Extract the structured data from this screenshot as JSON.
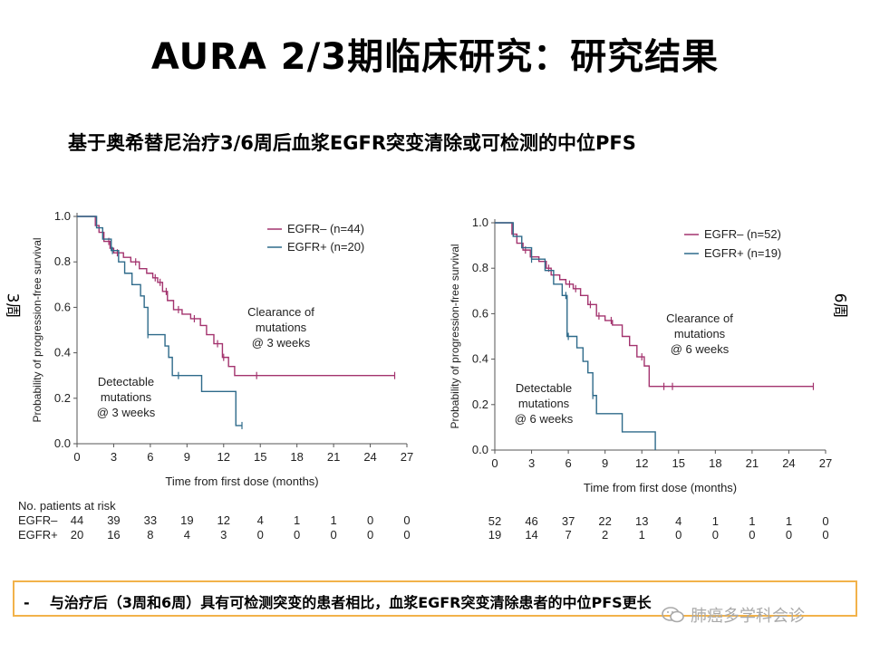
{
  "slide": {
    "title": "AURA 2/3期临床研究：研究结果",
    "subtitle": "基于奥希替尼治疗3/6周后血浆EGFR突变清除或可检测的中位PFS",
    "left_side_label": "3周",
    "right_side_label": "6周",
    "footer_bullet": "-",
    "footer_text": "与治疗后（3周和6周）具有可检测突变的患者相比，血浆EGFR突变清除患者的中位PFS更长",
    "watermark_text": "肺癌多学科会诊",
    "watermark_icon": "wechat-icon"
  },
  "colors": {
    "egfr_minus": "#a3336e",
    "egfr_plus": "#2e6a8a",
    "axis": "#555555",
    "footer_border": "#f2b24a",
    "watermark": "#a9a9a9"
  },
  "chart_data": [
    {
      "type": "line",
      "step": true,
      "xlabel": "Time from first dose (months)",
      "ylabel": "Probability of progression-free survival",
      "xlim": [
        0,
        27
      ],
      "ylim": [
        0,
        1.0
      ],
      "xticks": [
        "0",
        "3",
        "6",
        "9",
        "12",
        "15",
        "18",
        "21",
        "24",
        "27"
      ],
      "yticks": [
        "0.0",
        "0.2",
        "0.4",
        "0.6",
        "0.8",
        "1.0"
      ],
      "legend": "top-right",
      "grid": false,
      "series": [
        {
          "name": "EGFR– (n=44)",
          "x": [
            0,
            1.5,
            1.8,
            2.2,
            2.7,
            3.0,
            3.8,
            4.4,
            5.1,
            5.7,
            6.2,
            6.6,
            7.0,
            7.4,
            7.9,
            8.6,
            9.3,
            10.1,
            10.6,
            11.2,
            11.9,
            12.4,
            12.9,
            26.0
          ],
          "y": [
            1.0,
            0.96,
            0.93,
            0.89,
            0.86,
            0.84,
            0.82,
            0.8,
            0.77,
            0.75,
            0.73,
            0.71,
            0.67,
            0.63,
            0.59,
            0.57,
            0.55,
            0.52,
            0.48,
            0.44,
            0.38,
            0.34,
            0.3,
            0.3
          ],
          "censor_x": [
            2.6,
            3.3,
            4.8,
            6.4,
            6.8,
            7.3,
            8.3,
            9.6,
            11.5,
            12.0,
            14.7,
            26.0
          ]
        },
        {
          "name": "EGFR+ (n=20)",
          "x": [
            0,
            1.6,
            2.1,
            2.8,
            3.4,
            3.9,
            4.5,
            5.2,
            5.5,
            5.8,
            6.6,
            7.2,
            7.5,
            7.8,
            9.7,
            10.2,
            12.5,
            13.0,
            13.5
          ],
          "y": [
            1.0,
            0.95,
            0.9,
            0.85,
            0.8,
            0.75,
            0.7,
            0.65,
            0.6,
            0.48,
            0.48,
            0.43,
            0.38,
            0.3,
            0.3,
            0.23,
            0.23,
            0.08,
            0.08
          ],
          "censor_x": [
            2.9,
            5.8,
            8.3,
            13.5
          ]
        }
      ],
      "annotations": [
        "Clearance of mutations @ 3 weeks",
        "Detectable mutations @ 3 weeks"
      ],
      "risk_table": {
        "header": "No. patients at risk",
        "times": [
          "0",
          "3",
          "6",
          "9",
          "12",
          "15",
          "18",
          "21",
          "24",
          "27"
        ],
        "rows": [
          {
            "label": "EGFR–",
            "values": [
              "44",
              "39",
              "33",
              "19",
              "12",
              "4",
              "1",
              "1",
              "0",
              "0"
            ]
          },
          {
            "label": "EGFR+",
            "values": [
              "20",
              "16",
              "8",
              "4",
              "3",
              "0",
              "0",
              "0",
              "0",
              "0"
            ]
          }
        ]
      }
    },
    {
      "type": "line",
      "step": true,
      "xlabel": "Time from first dose (months)",
      "ylabel": "Probability of progression-free survival",
      "xlim": [
        0,
        27
      ],
      "ylim": [
        0,
        1.0
      ],
      "xticks": [
        "0",
        "3",
        "6",
        "9",
        "12",
        "15",
        "18",
        "21",
        "24",
        "27"
      ],
      "yticks": [
        "0.0",
        "0.2",
        "0.4",
        "0.6",
        "0.8",
        "1.0"
      ],
      "legend": "top-right",
      "grid": false,
      "series": [
        {
          "name": "EGFR– (n=52)",
          "x": [
            0,
            1.4,
            1.8,
            2.3,
            2.9,
            3.6,
            4.2,
            4.6,
            5.3,
            5.8,
            6.4,
            7.0,
            7.6,
            8.3,
            9.0,
            9.6,
            10.4,
            11.0,
            11.6,
            12.2,
            12.6,
            26.0
          ],
          "y": [
            1.0,
            0.95,
            0.91,
            0.88,
            0.85,
            0.83,
            0.8,
            0.77,
            0.75,
            0.73,
            0.71,
            0.68,
            0.64,
            0.59,
            0.57,
            0.55,
            0.5,
            0.46,
            0.41,
            0.37,
            0.28,
            0.28
          ],
          "censor_x": [
            2.5,
            4.4,
            6.1,
            6.6,
            7.8,
            8.5,
            9.5,
            12.0,
            13.8,
            14.5,
            26.0
          ]
        },
        {
          "name": "EGFR+ (n=19)",
          "x": [
            0,
            1.5,
            2.2,
            3.0,
            4.1,
            4.8,
            5.5,
            5.9,
            6.7,
            7.2,
            7.6,
            8.0,
            8.3,
            10.0,
            10.4,
            12.8,
            13.1
          ],
          "y": [
            1.0,
            0.94,
            0.89,
            0.84,
            0.79,
            0.73,
            0.68,
            0.5,
            0.45,
            0.39,
            0.34,
            0.24,
            0.16,
            0.16,
            0.08,
            0.08,
            0.0
          ],
          "censor_x": [
            3.0,
            5.8,
            6.0,
            8.0
          ]
        }
      ],
      "annotations": [
        "Clearance of mutations @ 6 weeks",
        "Detectable mutations @ 6 weeks"
      ],
      "risk_table": {
        "header": "",
        "times": [
          "0",
          "3",
          "6",
          "9",
          "12",
          "15",
          "18",
          "21",
          "24",
          "27"
        ],
        "rows": [
          {
            "label": "",
            "values": [
              "52",
              "46",
              "37",
              "22",
              "13",
              "4",
              "1",
              "1",
              "1",
              "0"
            ]
          },
          {
            "label": "",
            "values": [
              "19",
              "14",
              "7",
              "2",
              "1",
              "0",
              "0",
              "0",
              "0",
              "0"
            ]
          }
        ]
      }
    }
  ]
}
